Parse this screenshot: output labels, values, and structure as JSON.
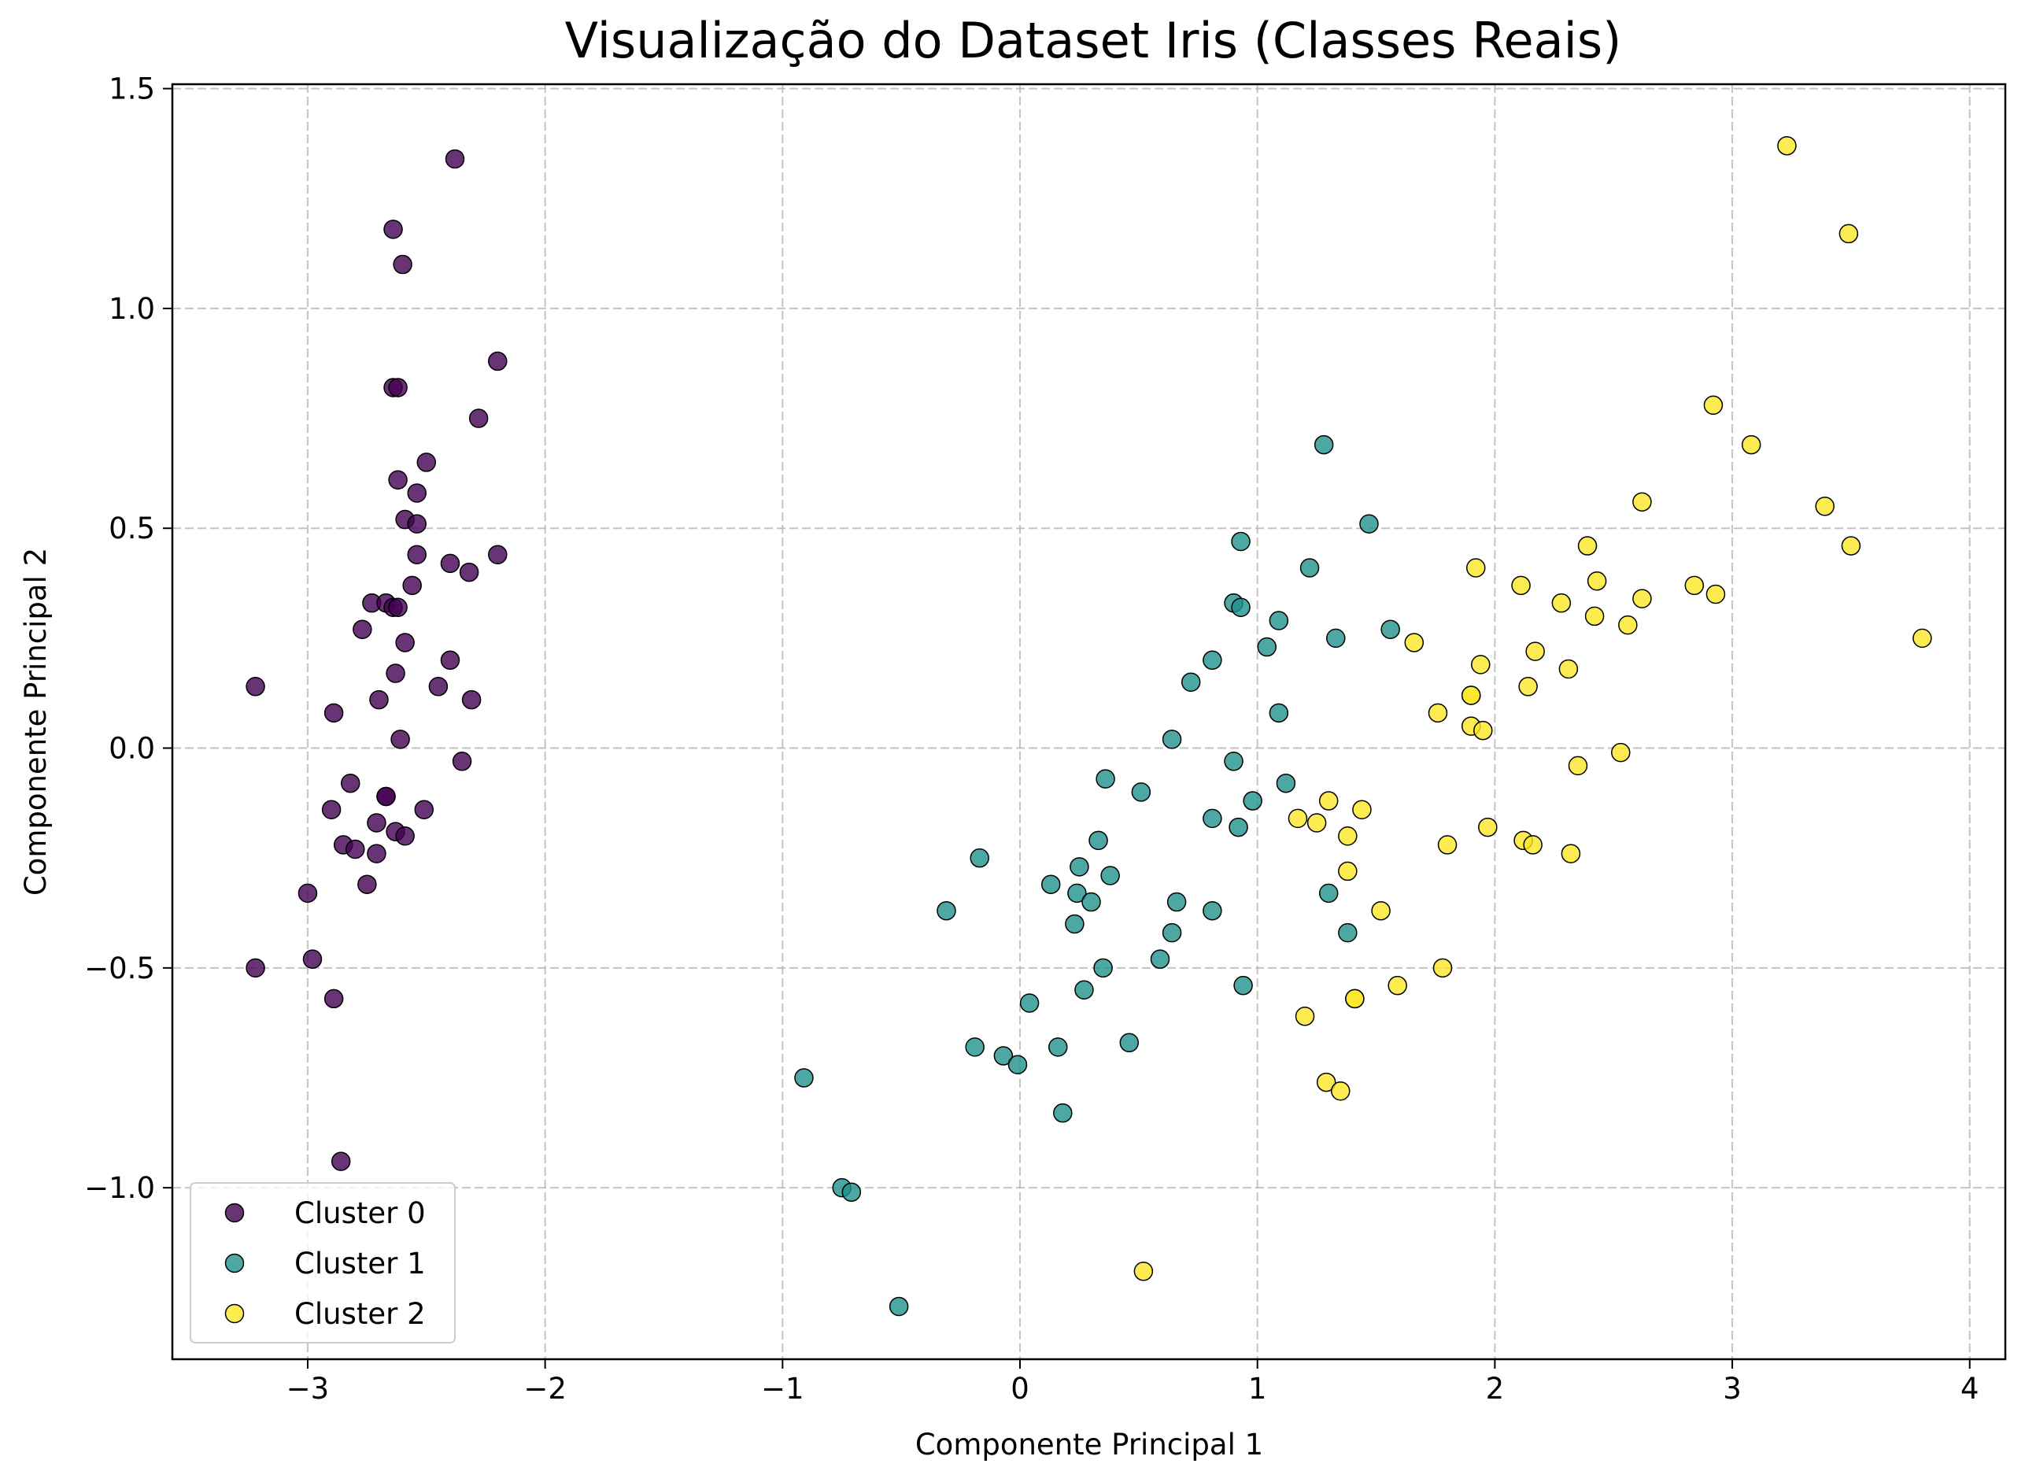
{
  "chart_data": {
    "type": "scatter",
    "title": "Visualização do Dataset Iris (Classes Reais)",
    "xlabel": "Componente Principal 1",
    "ylabel": "Componente Principal 2",
    "xlim": [
      -3.57,
      4.15
    ],
    "ylim": [
      -1.39,
      1.51
    ],
    "xticks": [
      -3,
      -2,
      -1,
      0,
      1,
      2,
      3,
      4
    ],
    "yticks": [
      -1.0,
      -0.5,
      0.0,
      0.5,
      1.0,
      1.5
    ],
    "xtick_labels": [
      "−3",
      "−2",
      "−1",
      "0",
      "1",
      "2",
      "3",
      "4"
    ],
    "ytick_labels": [
      "−1.0",
      "−0.5",
      "0.0",
      "0.5",
      "1.0",
      "1.5"
    ],
    "grid": true,
    "legend_position": "lower-left",
    "series": [
      {
        "name": "Cluster 0",
        "color": "#440154",
        "points": [
          [
            -2.38,
            1.34
          ],
          [
            -2.64,
            1.18
          ],
          [
            -2.6,
            1.1
          ],
          [
            -2.2,
            0.88
          ],
          [
            -2.64,
            0.82
          ],
          [
            -2.62,
            0.82
          ],
          [
            -2.28,
            0.75
          ],
          [
            -2.5,
            0.65
          ],
          [
            -2.62,
            0.61
          ],
          [
            -2.54,
            0.58
          ],
          [
            -2.59,
            0.52
          ],
          [
            -2.54,
            0.51
          ],
          [
            -2.54,
            0.44
          ],
          [
            -2.2,
            0.44
          ],
          [
            -2.4,
            0.42
          ],
          [
            -2.32,
            0.4
          ],
          [
            -2.56,
            0.37
          ],
          [
            -2.73,
            0.33
          ],
          [
            -2.67,
            0.33
          ],
          [
            -2.64,
            0.32
          ],
          [
            -2.62,
            0.32
          ],
          [
            -2.77,
            0.27
          ],
          [
            -2.59,
            0.24
          ],
          [
            -2.4,
            0.2
          ],
          [
            -2.63,
            0.17
          ],
          [
            -2.45,
            0.14
          ],
          [
            -3.22,
            0.14
          ],
          [
            -2.7,
            0.11
          ],
          [
            -2.31,
            0.11
          ],
          [
            -2.89,
            0.08
          ],
          [
            -2.61,
            0.02
          ],
          [
            -2.35,
            -0.03
          ],
          [
            -2.82,
            -0.08
          ],
          [
            -2.67,
            -0.11
          ],
          [
            -2.67,
            -0.11
          ],
          [
            -2.9,
            -0.14
          ],
          [
            -2.51,
            -0.14
          ],
          [
            -2.71,
            -0.17
          ],
          [
            -2.63,
            -0.19
          ],
          [
            -2.59,
            -0.2
          ],
          [
            -2.85,
            -0.22
          ],
          [
            -2.8,
            -0.23
          ],
          [
            -2.71,
            -0.24
          ],
          [
            -2.75,
            -0.31
          ],
          [
            -3.0,
            -0.33
          ],
          [
            -2.98,
            -0.48
          ],
          [
            -3.22,
            -0.5
          ],
          [
            -2.89,
            -0.57
          ],
          [
            -2.86,
            -0.94
          ]
        ]
      },
      {
        "name": "Cluster 1",
        "color": "#21918c",
        "points": [
          [
            1.28,
            0.69
          ],
          [
            1.47,
            0.51
          ],
          [
            0.93,
            0.47
          ],
          [
            1.22,
            0.41
          ],
          [
            0.9,
            0.33
          ],
          [
            0.93,
            0.32
          ],
          [
            1.09,
            0.29
          ],
          [
            1.56,
            0.27
          ],
          [
            1.33,
            0.25
          ],
          [
            1.04,
            0.23
          ],
          [
            0.81,
            0.2
          ],
          [
            0.72,
            0.15
          ],
          [
            1.09,
            0.08
          ],
          [
            0.64,
            0.02
          ],
          [
            0.9,
            -0.03
          ],
          [
            0.36,
            -0.07
          ],
          [
            1.12,
            -0.08
          ],
          [
            0.51,
            -0.1
          ],
          [
            0.98,
            -0.12
          ],
          [
            0.81,
            -0.16
          ],
          [
            0.92,
            -0.18
          ],
          [
            0.33,
            -0.21
          ],
          [
            -0.17,
            -0.25
          ],
          [
            0.25,
            -0.27
          ],
          [
            0.38,
            -0.29
          ],
          [
            0.13,
            -0.31
          ],
          [
            0.24,
            -0.33
          ],
          [
            1.3,
            -0.33
          ],
          [
            0.3,
            -0.35
          ],
          [
            0.66,
            -0.35
          ],
          [
            -0.31,
            -0.37
          ],
          [
            0.81,
            -0.37
          ],
          [
            0.64,
            -0.42
          ],
          [
            1.38,
            -0.42
          ],
          [
            0.23,
            -0.4
          ],
          [
            0.59,
            -0.48
          ],
          [
            0.35,
            -0.5
          ],
          [
            0.94,
            -0.54
          ],
          [
            0.27,
            -0.55
          ],
          [
            0.04,
            -0.58
          ],
          [
            0.46,
            -0.67
          ],
          [
            -0.19,
            -0.68
          ],
          [
            0.16,
            -0.68
          ],
          [
            -0.07,
            -0.7
          ],
          [
            -0.01,
            -0.72
          ],
          [
            -0.91,
            -0.75
          ],
          [
            0.18,
            -0.83
          ],
          [
            -0.75,
            -1.0
          ],
          [
            -0.71,
            -1.01
          ],
          [
            -0.51,
            -1.27
          ]
        ]
      },
      {
        "name": "Cluster 2",
        "color": "#fde725",
        "points": [
          [
            3.23,
            1.37
          ],
          [
            3.49,
            1.17
          ],
          [
            2.92,
            0.78
          ],
          [
            3.08,
            0.69
          ],
          [
            2.62,
            0.56
          ],
          [
            3.39,
            0.55
          ],
          [
            2.39,
            0.46
          ],
          [
            3.5,
            0.46
          ],
          [
            1.92,
            0.41
          ],
          [
            2.43,
            0.38
          ],
          [
            2.11,
            0.37
          ],
          [
            2.84,
            0.37
          ],
          [
            2.93,
            0.35
          ],
          [
            2.62,
            0.34
          ],
          [
            2.28,
            0.33
          ],
          [
            2.42,
            0.3
          ],
          [
            2.56,
            0.28
          ],
          [
            3.8,
            0.25
          ],
          [
            1.66,
            0.24
          ],
          [
            2.17,
            0.22
          ],
          [
            1.94,
            0.19
          ],
          [
            2.31,
            0.18
          ],
          [
            2.14,
            0.14
          ],
          [
            1.9,
            0.12
          ],
          [
            1.9,
            0.12
          ],
          [
            1.76,
            0.08
          ],
          [
            1.9,
            0.05
          ],
          [
            1.95,
            0.04
          ],
          [
            2.53,
            -0.01
          ],
          [
            2.35,
            -0.04
          ],
          [
            1.3,
            -0.12
          ],
          [
            1.44,
            -0.14
          ],
          [
            1.17,
            -0.16
          ],
          [
            1.25,
            -0.17
          ],
          [
            1.97,
            -0.18
          ],
          [
            1.38,
            -0.2
          ],
          [
            2.12,
            -0.21
          ],
          [
            1.8,
            -0.22
          ],
          [
            2.16,
            -0.22
          ],
          [
            2.32,
            -0.24
          ],
          [
            1.38,
            -0.28
          ],
          [
            1.52,
            -0.37
          ],
          [
            1.78,
            -0.5
          ],
          [
            1.59,
            -0.54
          ],
          [
            1.41,
            -0.57
          ],
          [
            1.41,
            -0.57
          ],
          [
            1.2,
            -0.61
          ],
          [
            1.29,
            -0.76
          ],
          [
            1.35,
            -0.78
          ],
          [
            0.52,
            -1.19
          ]
        ]
      }
    ]
  }
}
